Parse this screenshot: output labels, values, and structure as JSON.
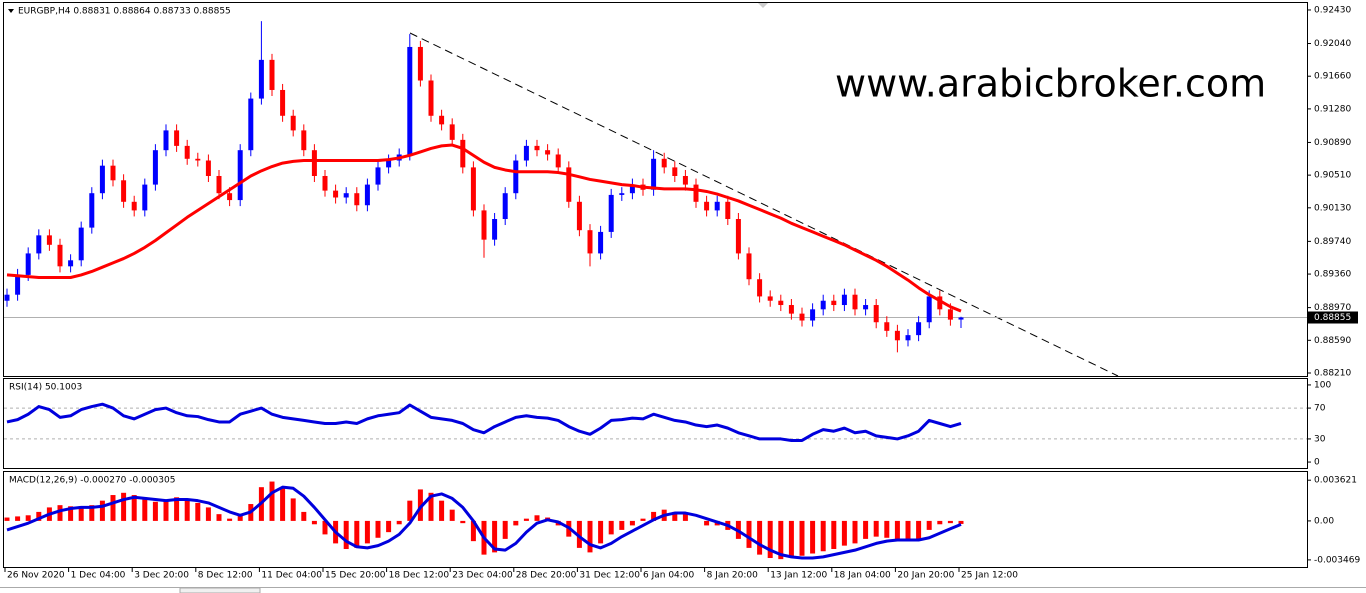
{
  "chart_data": [
    {
      "type": "candlestick",
      "title": "EURGBP,H4  0.88831 0.88864 0.88733 0.88855",
      "annotation": "www.arabicbroker.com",
      "annotation_color": "#1a1ae6",
      "up_color": "#0000ff",
      "down_color": "#ff0000",
      "categories": [
        "26 Nov 2020",
        null,
        null,
        null,
        null,
        null,
        "1 Dec 04:00",
        null,
        null,
        null,
        null,
        null,
        "3 Dec 20:00",
        null,
        null,
        null,
        null,
        null,
        "8 Dec 12:00",
        null,
        null,
        null,
        null,
        null,
        "11 Dec 04:00",
        null,
        null,
        null,
        null,
        null,
        "15 Dec 20:00",
        null,
        null,
        null,
        null,
        null,
        "18 Dec 12:00",
        null,
        null,
        null,
        null,
        null,
        "23 Dec 04:00",
        null,
        null,
        null,
        null,
        null,
        "28 Dec 20:00",
        null,
        null,
        null,
        null,
        null,
        "31 Dec 12:00",
        null,
        null,
        null,
        null,
        null,
        "6 Jan 04:00",
        null,
        null,
        null,
        null,
        null,
        "8 Jan 20:00",
        null,
        null,
        null,
        null,
        null,
        "13 Jan 12:00",
        null,
        null,
        null,
        null,
        null,
        "18 Jan 04:00",
        null,
        null,
        null,
        null,
        null,
        "20 Jan 20:00",
        null,
        null,
        null,
        null,
        null,
        "25 Jan 12:00"
      ],
      "open": [
        0.8905,
        0.8912,
        0.8935,
        0.896,
        0.8981,
        0.897,
        0.8945,
        0.8952,
        0.899,
        0.903,
        0.9062,
        0.9045,
        0.902,
        0.901,
        0.904,
        0.908,
        0.9103,
        0.9085,
        0.907,
        0.9068,
        0.905,
        0.903,
        0.9022,
        0.908,
        0.914,
        0.9185,
        0.915,
        0.912,
        0.9103,
        0.908,
        0.905,
        0.9033,
        0.9025,
        0.903,
        0.9016,
        0.904,
        0.906,
        0.9068,
        0.9075,
        0.92,
        0.9161,
        0.912,
        0.911,
        0.9092,
        0.906,
        0.901,
        0.8976,
        0.9,
        0.903,
        0.9068,
        0.9085,
        0.908,
        0.9075,
        0.906,
        0.902,
        0.8987,
        0.896,
        0.8985,
        0.9028,
        0.903,
        0.904,
        0.9034,
        0.907,
        0.906,
        0.905,
        0.904,
        0.902,
        0.901,
        0.902,
        0.9,
        0.896,
        0.893,
        0.891,
        0.8905,
        0.89,
        0.889,
        0.8882,
        0.8895,
        0.8905,
        0.89,
        0.8912,
        0.8895,
        0.89,
        0.888,
        0.887,
        0.8859,
        0.8865,
        0.888,
        0.891,
        0.8895,
        0.88831
      ],
      "high": [
        0.8919,
        0.8942,
        0.8967,
        0.8988,
        0.8988,
        0.8977,
        0.8959,
        0.8997,
        0.9037,
        0.9069,
        0.9069,
        0.9052,
        0.9027,
        0.9047,
        0.9087,
        0.911,
        0.911,
        0.9092,
        0.9077,
        0.9075,
        0.9057,
        0.9037,
        0.9087,
        0.9147,
        0.923,
        0.9192,
        0.9157,
        0.9127,
        0.911,
        0.9087,
        0.9057,
        0.904,
        0.9037,
        0.9037,
        0.9047,
        0.9067,
        0.9075,
        0.9082,
        0.9215,
        0.9207,
        0.9168,
        0.9127,
        0.9117,
        0.9099,
        0.9067,
        0.9017,
        0.9007,
        0.9037,
        0.9075,
        0.9092,
        0.9092,
        0.9087,
        0.9082,
        0.9067,
        0.9027,
        0.8994,
        0.8992,
        0.9035,
        0.9037,
        0.9047,
        0.9047,
        0.908,
        0.9077,
        0.9067,
        0.9057,
        0.9047,
        0.9027,
        0.9027,
        0.9027,
        0.9007,
        0.8967,
        0.8937,
        0.8917,
        0.8912,
        0.8907,
        0.8897,
        0.8902,
        0.8912,
        0.8912,
        0.8919,
        0.8919,
        0.8907,
        0.8907,
        0.8887,
        0.8877,
        0.8872,
        0.8887,
        0.8917,
        0.8917,
        0.8902,
        0.88864
      ],
      "low": [
        0.8898,
        0.8905,
        0.8928,
        0.8953,
        0.8963,
        0.8938,
        0.8938,
        0.8945,
        0.8983,
        0.9023,
        0.9038,
        0.9013,
        0.9003,
        0.9003,
        0.9033,
        0.9073,
        0.9078,
        0.9063,
        0.9061,
        0.9043,
        0.9023,
        0.9015,
        0.9015,
        0.9073,
        0.9133,
        0.9143,
        0.9113,
        0.9096,
        0.9073,
        0.9043,
        0.9026,
        0.9018,
        0.9018,
        0.9009,
        0.9009,
        0.9033,
        0.9053,
        0.9061,
        0.9068,
        0.9154,
        0.9113,
        0.9103,
        0.9085,
        0.9053,
        0.9003,
        0.8955,
        0.8969,
        0.8993,
        0.9023,
        0.9061,
        0.9073,
        0.9068,
        0.9053,
        0.9013,
        0.898,
        0.8945,
        0.8953,
        0.8978,
        0.9021,
        0.9023,
        0.9027,
        0.9027,
        0.9053,
        0.9043,
        0.9033,
        0.9013,
        0.9003,
        0.9003,
        0.8993,
        0.8953,
        0.8923,
        0.8903,
        0.8898,
        0.8893,
        0.8883,
        0.8875,
        0.8875,
        0.8888,
        0.8893,
        0.8893,
        0.8888,
        0.8888,
        0.8873,
        0.8863,
        0.8845,
        0.8852,
        0.8858,
        0.8873,
        0.8888,
        0.8876,
        0.88733
      ],
      "close": [
        0.8912,
        0.8935,
        0.896,
        0.8981,
        0.897,
        0.8945,
        0.8952,
        0.899,
        0.903,
        0.9062,
        0.9045,
        0.902,
        0.901,
        0.904,
        0.908,
        0.9103,
        0.9085,
        0.907,
        0.9068,
        0.905,
        0.903,
        0.9022,
        0.908,
        0.914,
        0.9185,
        0.915,
        0.912,
        0.9103,
        0.908,
        0.905,
        0.9033,
        0.9025,
        0.903,
        0.9016,
        0.904,
        0.906,
        0.9068,
        0.9075,
        0.92,
        0.9161,
        0.912,
        0.911,
        0.9092,
        0.906,
        0.901,
        0.8976,
        0.9,
        0.903,
        0.9068,
        0.9085,
        0.908,
        0.9075,
        0.906,
        0.902,
        0.8987,
        0.896,
        0.8985,
        0.9028,
        0.903,
        0.904,
        0.9034,
        0.907,
        0.906,
        0.905,
        0.904,
        0.902,
        0.901,
        0.902,
        0.9,
        0.896,
        0.893,
        0.891,
        0.8905,
        0.89,
        0.889,
        0.8882,
        0.8895,
        0.8905,
        0.89,
        0.8912,
        0.8895,
        0.89,
        0.888,
        0.887,
        0.8859,
        0.8865,
        0.888,
        0.891,
        0.8895,
        0.8883,
        0.88855
      ],
      "series": [
        {
          "color": "#ff0000",
          "values": [
            0.8935,
            0.8934,
            0.8933,
            0.8932,
            0.8932,
            0.8932,
            0.8932,
            0.8935,
            0.8939,
            0.8944,
            0.8949,
            0.8954,
            0.896,
            0.8967,
            0.8975,
            0.8984,
            0.8993,
            0.9002,
            0.901,
            0.9018,
            0.9026,
            0.9034,
            0.9042,
            0.905,
            0.9056,
            0.9061,
            0.9065,
            0.9067,
            0.9068,
            0.9068,
            0.9068,
            0.9068,
            0.9068,
            0.9068,
            0.9068,
            0.9068,
            0.9069,
            0.9071,
            0.9074,
            0.9078,
            0.9082,
            0.9085,
            0.9086,
            0.9082,
            0.9074,
            0.9066,
            0.906,
            0.9057,
            0.9055,
            0.9055,
            0.9055,
            0.9055,
            0.9054,
            0.9052,
            0.9049,
            0.9046,
            0.9044,
            0.9042,
            0.904,
            0.9039,
            0.9037,
            0.9036,
            0.9035,
            0.9035,
            0.9035,
            0.9034,
            0.9032,
            0.9029,
            0.9025,
            0.9021,
            0.9016,
            0.9011,
            0.9006,
            0.9001,
            0.8995,
            0.899,
            0.8985,
            0.898,
            0.8975,
            0.897,
            0.8964,
            0.8958,
            0.8952,
            0.8945,
            0.8937,
            0.8929,
            0.892,
            0.8912,
            0.8905,
            0.8898,
            0.8893
          ]
        }
      ],
      "current_price": 0.88855,
      "ylim": [
        0.88175,
        0.92511
      ],
      "yticks": [
        {
          "value": 0.9243,
          "label": "0.92430"
        },
        {
          "value": 0.9204,
          "label": "0.92040"
        },
        {
          "value": 0.9166,
          "label": "0.91660"
        },
        {
          "value": 0.9128,
          "label": "0.91280"
        },
        {
          "value": 0.9089,
          "label": "0.90890"
        },
        {
          "value": 0.9051,
          "label": "0.90510"
        },
        {
          "value": 0.9013,
          "label": "0.90130"
        },
        {
          "value": 0.8974,
          "label": "0.89740"
        },
        {
          "value": 0.8936,
          "label": "0.89360"
        },
        {
          "value": 0.8897,
          "label": "0.88970"
        },
        {
          "value": 0.8859,
          "label": "0.88590"
        },
        {
          "value": 0.8821,
          "label": "0.88210"
        }
      ]
    },
    {
      "type": "line",
      "title": "RSI(14) 50.1003",
      "color": "#0000dd",
      "values": [
        52,
        55,
        62,
        72,
        68,
        58,
        60,
        68,
        72,
        75,
        70,
        60,
        56,
        62,
        68,
        70,
        64,
        60,
        59,
        55,
        52,
        52,
        62,
        66,
        70,
        62,
        58,
        56,
        54,
        52,
        50,
        50,
        52,
        50,
        56,
        60,
        62,
        64,
        74,
        66,
        58,
        56,
        54,
        50,
        42,
        38,
        46,
        52,
        58,
        60,
        58,
        57,
        54,
        46,
        40,
        36,
        44,
        54,
        55,
        57,
        56,
        62,
        58,
        54,
        52,
        48,
        46,
        48,
        44,
        38,
        34,
        30,
        30,
        30,
        28,
        28,
        36,
        42,
        40,
        44,
        38,
        40,
        34,
        32,
        30,
        34,
        40,
        54,
        50,
        46,
        50.1003
      ],
      "ylim": [
        -7.7,
        107.7
      ],
      "yticks": [
        100,
        70,
        30,
        0
      ],
      "levels": [
        70,
        30
      ]
    },
    {
      "type": "macd",
      "title": "MACD(12,26,9) -0.000270 -0.000305",
      "histogram": {
        "color": "#ff0000",
        "values": [
          0.0003,
          0.0004,
          0.0005,
          0.0008,
          0.0012,
          0.0014,
          0.0013,
          0.0013,
          0.0014,
          0.0018,
          0.0023,
          0.0025,
          0.0023,
          0.0019,
          0.0017,
          0.0019,
          0.0021,
          0.0019,
          0.0016,
          0.0012,
          0.0006,
          0.0002,
          0.0005,
          0.0015,
          0.003,
          0.0035,
          0.003,
          0.002,
          0.0008,
          -0.0003,
          -0.0012,
          -0.002,
          -0.0025,
          -0.0024,
          -0.002,
          -0.0015,
          -0.001,
          -0.0003,
          0.0018,
          0.0028,
          0.0025,
          0.0018,
          0.001,
          -0.0002,
          -0.0018,
          -0.003,
          -0.0028,
          -0.0016,
          -0.0004,
          0.0002,
          0.0005,
          0.0003,
          -0.0004,
          -0.0014,
          -0.0024,
          -0.0028,
          -0.002,
          -0.0012,
          -0.0008,
          -0.0004,
          0.0002,
          0.0008,
          0.001,
          0.0008,
          0.0006,
          0.0,
          -0.0004,
          -0.0004,
          -0.0008,
          -0.0016,
          -0.0024,
          -0.003,
          -0.0033,
          -0.0034,
          -0.0033,
          -0.0031,
          -0.0029,
          -0.0027,
          -0.0025,
          -0.0022,
          -0.002,
          -0.0016,
          -0.0014,
          -0.0015,
          -0.0018,
          -0.0018,
          -0.0016,
          -0.0008,
          -0.0003,
          -0.0002,
          -0.00027
        ]
      },
      "signal": {
        "color": "#0000dd",
        "values": [
          -0.0008,
          -0.0005,
          -0.0002,
          0.0002,
          0.0006,
          0.0009,
          0.0011,
          0.0012,
          0.0012,
          0.0013,
          0.0016,
          0.0019,
          0.0021,
          0.002,
          0.0019,
          0.0018,
          0.0019,
          0.0019,
          0.0018,
          0.0016,
          0.0012,
          0.0008,
          0.0005,
          0.0008,
          0.0016,
          0.0025,
          0.003,
          0.0029,
          0.0022,
          0.0012,
          0.0001,
          -0.001,
          -0.0018,
          -0.0023,
          -0.0024,
          -0.0022,
          -0.0018,
          -0.0012,
          -0.0002,
          0.0012,
          0.0022,
          0.0024,
          0.002,
          0.0012,
          0.0,
          -0.0015,
          -0.0025,
          -0.0026,
          -0.002,
          -0.001,
          -0.0002,
          0.0001,
          -0.0001,
          -0.0006,
          -0.0014,
          -0.0021,
          -0.0024,
          -0.002,
          -0.0014,
          -0.0009,
          -0.0004,
          0.0001,
          0.0005,
          0.0007,
          0.0007,
          0.0005,
          0.0002,
          -0.0001,
          -0.0004,
          -0.0009,
          -0.0015,
          -0.0021,
          -0.0026,
          -0.003,
          -0.0032,
          -0.0033,
          -0.0033,
          -0.0032,
          -0.003,
          -0.0028,
          -0.0026,
          -0.0023,
          -0.002,
          -0.0018,
          -0.0017,
          -0.0017,
          -0.0017,
          -0.0015,
          -0.0011,
          -0.0007,
          -0.000305
        ]
      },
      "ylim": [
        -0.0041,
        0.00435
      ],
      "yticks": [
        0.003621,
        {
          "value": 0,
          "label": "0.00"
        },
        -0.003469
      ]
    }
  ]
}
